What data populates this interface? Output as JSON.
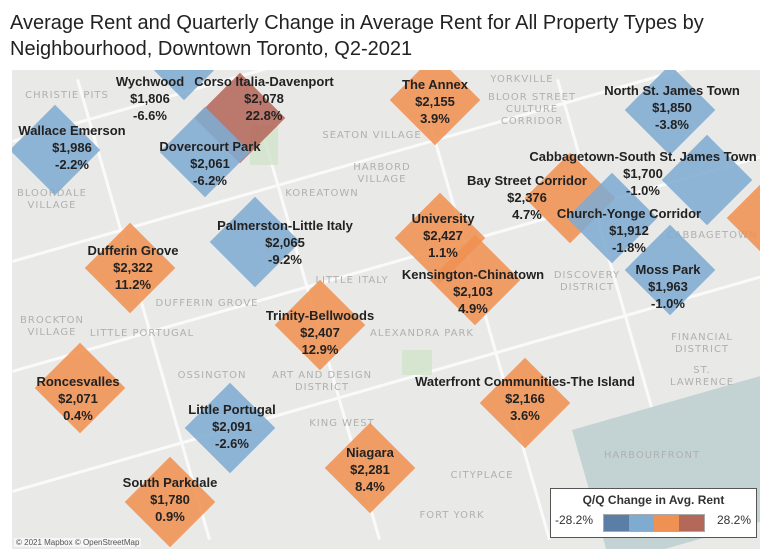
{
  "title": "Average Rent and Quarterly Change in Average Rent for All Property Types by Neighbourhood, Downtown Toronto, Q2-2021",
  "colors": {
    "dark_blue": "#5a7ea6",
    "light_blue": "#7fabd1",
    "orange": "#ef9152",
    "brown": "#b4685a"
  },
  "neighbourhoods": [
    {
      "name": "Wychwood",
      "rent": "$1,806",
      "change": "-6.6%",
      "color": "light_blue"
    },
    {
      "name": "Corso Italia-Davenport",
      "rent": "$2,078",
      "change": "22.8%",
      "color": "brown"
    },
    {
      "name": "Wallace Emerson",
      "rent": "$1,986",
      "change": "-2.2%",
      "color": "light_blue"
    },
    {
      "name": "Dovercourt Park",
      "rent": "$2,061",
      "change": "-6.2%",
      "color": "light_blue"
    },
    {
      "name": "The Annex",
      "rent": "$2,155",
      "change": "3.9%",
      "color": "orange"
    },
    {
      "name": "North St. James Town",
      "rent": "$1,850",
      "change": "-3.8%",
      "color": "light_blue"
    },
    {
      "name": "Cabbagetown-South St. James Town",
      "rent": "$1,700",
      "change": "-1.0%",
      "color": "light_blue"
    },
    {
      "name": "Bay Street Corridor",
      "rent": "$2,376",
      "change": "4.7%",
      "color": "orange"
    },
    {
      "name": "Church-Yonge Corridor",
      "rent": "$1,912",
      "change": "-1.8%",
      "color": "light_blue"
    },
    {
      "name": "Moss Park",
      "rent": "$1,963",
      "change": "-1.0%",
      "color": "light_blue"
    },
    {
      "name": "Palmerston-Little Italy",
      "rent": "$2,065",
      "change": "-9.2%",
      "color": "light_blue"
    },
    {
      "name": "University",
      "rent": "$2,427",
      "change": "1.1%",
      "color": "orange"
    },
    {
      "name": "Kensington-Chinatown",
      "rent": "$2,103",
      "change": "4.9%",
      "color": "orange"
    },
    {
      "name": "Dufferin Grove",
      "rent": "$2,322",
      "change": "11.2%",
      "color": "orange"
    },
    {
      "name": "Trinity-Bellwoods",
      "rent": "$2,407",
      "change": "12.9%",
      "color": "orange"
    },
    {
      "name": "Roncesvalles",
      "rent": "$2,071",
      "change": "0.4%",
      "color": "orange"
    },
    {
      "name": "Waterfront Communities-The Island",
      "rent": "$2,166",
      "change": "3.6%",
      "color": "orange"
    },
    {
      "name": "Little Portugal",
      "rent": "$2,091",
      "change": "-2.6%",
      "color": "light_blue"
    },
    {
      "name": "Niagara",
      "rent": "$2,281",
      "change": "8.4%",
      "color": "orange"
    },
    {
      "name": "South Parkdale",
      "rent": "$1,780",
      "change": "0.9%",
      "color": "orange"
    }
  ],
  "place_labels": [
    "SEATON VILLAGE",
    "YORKVILLE",
    "BLOOR STREET CULTURE CORRIDOR",
    "CHRISTIE PITS",
    "KOREATOWN",
    "HARBORD VILLAGE",
    "BLOORDALE VILLAGE",
    "DUFFERIN GROVE",
    "LITTLE ITALY",
    "DISCOVERY DISTRICT",
    "ALEXANDRA PARK",
    "BROCKTON VILLAGE",
    "LITTLE PORTUGAL",
    "OSSINGTON",
    "ART AND DESIGN DISTRICT",
    "KING WEST",
    "FINANCIAL DISTRICT",
    "ST. LAWRENCE",
    "CITYPLACE",
    "HARBOURFRONT",
    "FORT YORK",
    "CABBAGETOWN"
  ],
  "credit": "© 2021 Mapbox © OpenStreetMap",
  "legend": {
    "title": "Q/Q Change in Avg. Rent",
    "min": "-28.2%",
    "max": "28.2%"
  }
}
